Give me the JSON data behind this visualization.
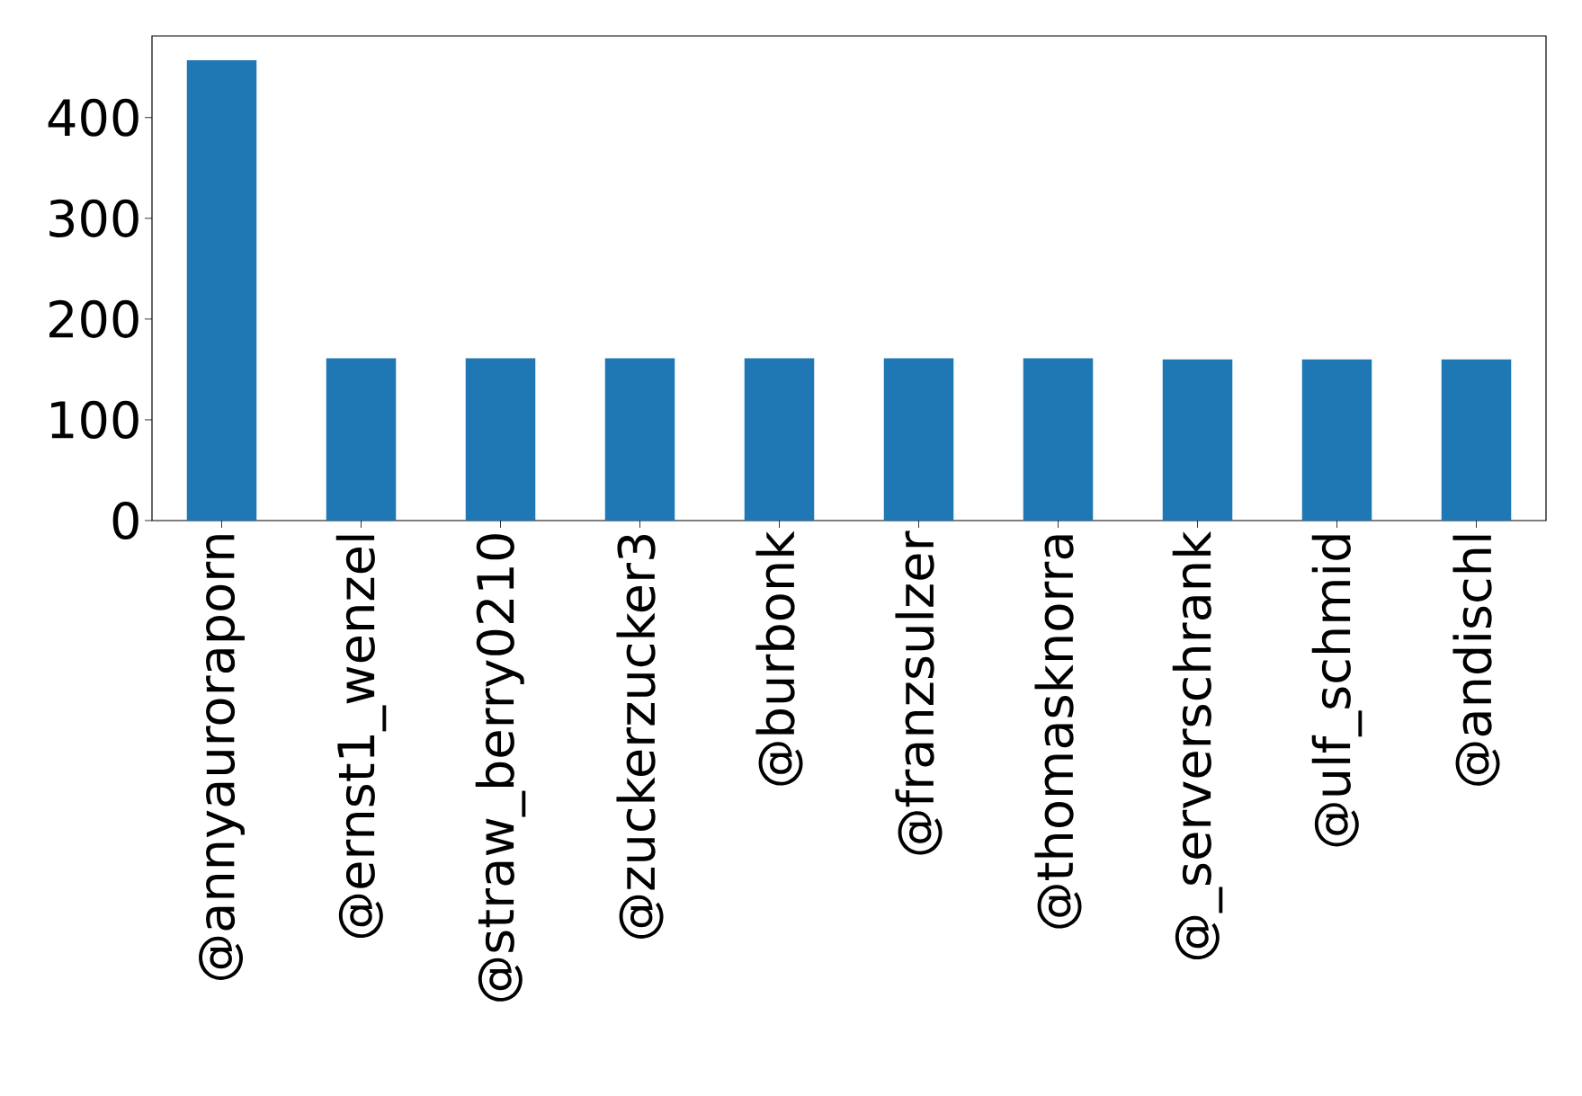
{
  "chart_data": {
    "type": "bar",
    "categories": [
      "@annyauroraporn",
      "@ernst1_wenzel",
      "@straw_berry0210",
      "@zuckerzucker3",
      "@burbonk",
      "@franzsulzer",
      "@thomasknorra",
      "@_serverschrank",
      "@ulf_schmid",
      "@andischl"
    ],
    "values": [
      457,
      161,
      161,
      161,
      161,
      161,
      161,
      160,
      160,
      160
    ],
    "color": "#1f77b4",
    "ylim": [
      0,
      481
    ],
    "yticks": [
      0,
      100,
      200,
      300,
      400
    ],
    "grid": false
  }
}
